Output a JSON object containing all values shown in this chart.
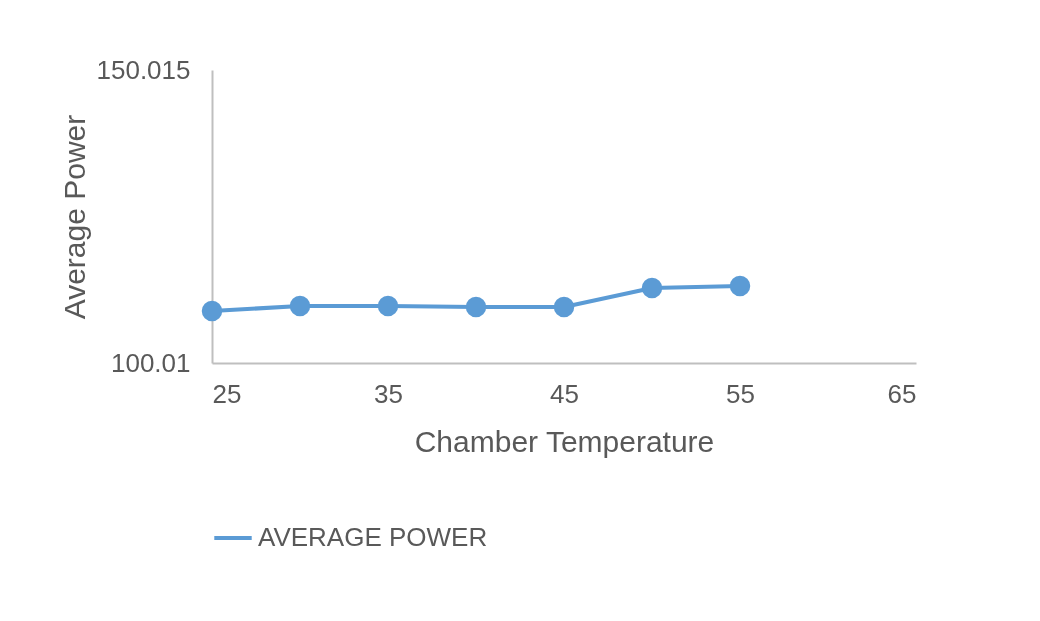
{
  "chart_data": {
    "type": "line",
    "xlabel": "Chamber Temperature",
    "ylabel": "Average Power",
    "x": [
      25,
      30,
      35,
      40,
      45,
      50,
      55
    ],
    "series": [
      {
        "name": "AVERAGE POWER",
        "color": "#5b9bd5",
        "values": [
          108.88,
          109.74,
          109.74,
          109.57,
          109.57,
          112.81,
          113.15
        ]
      }
    ],
    "xlim": [
      25,
      65
    ],
    "xticks": [
      25,
      35,
      45,
      55,
      65
    ],
    "ylim": [
      100.01,
      150.015
    ],
    "yticks": [
      100.01,
      150.015
    ],
    "grid": false,
    "legend": "bottom",
    "marker": "circle",
    "line_style": "solid"
  }
}
